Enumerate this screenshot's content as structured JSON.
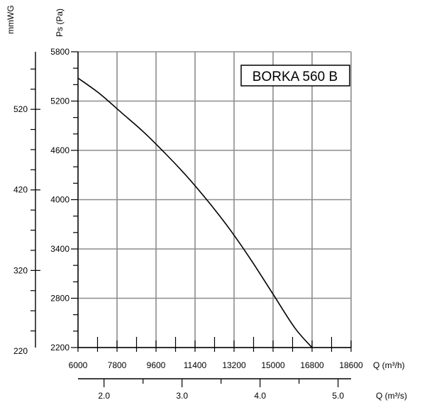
{
  "chart_data": {
    "type": "line",
    "model_label": "BORKA 560 B",
    "y_left_unit": "mmWG",
    "y_right_unit": "Ps (Pa)",
    "x_top_unit": "Q (m³/h)",
    "x_bottom_unit": "Q (m³/s)",
    "ylim_pa": [
      2200,
      5800
    ],
    "xlim_m3h": [
      6000,
      18600
    ],
    "pa_ticks": [
      "5800",
      "5200",
      "4600",
      "4000",
      "3400",
      "2800",
      "2200"
    ],
    "mmwg_ticks": [
      "520",
      "420",
      "320",
      "220"
    ],
    "m3h_ticks": [
      "6000",
      "7800",
      "9600",
      "11400",
      "13200",
      "15000",
      "16800",
      "18600"
    ],
    "m3s_ticks": [
      "2.0",
      "3.0",
      "4.0",
      "5.0"
    ],
    "grid": true,
    "series": [
      {
        "x": [
          6000,
          7000,
          8000,
          9000,
          10000,
          11000,
          12000,
          13000,
          14000,
          15000,
          16000,
          16800
        ],
        "y": [
          5480,
          5290,
          5060,
          4830,
          4570,
          4290,
          3980,
          3640,
          3260,
          2850,
          2440,
          2200
        ]
      }
    ]
  }
}
